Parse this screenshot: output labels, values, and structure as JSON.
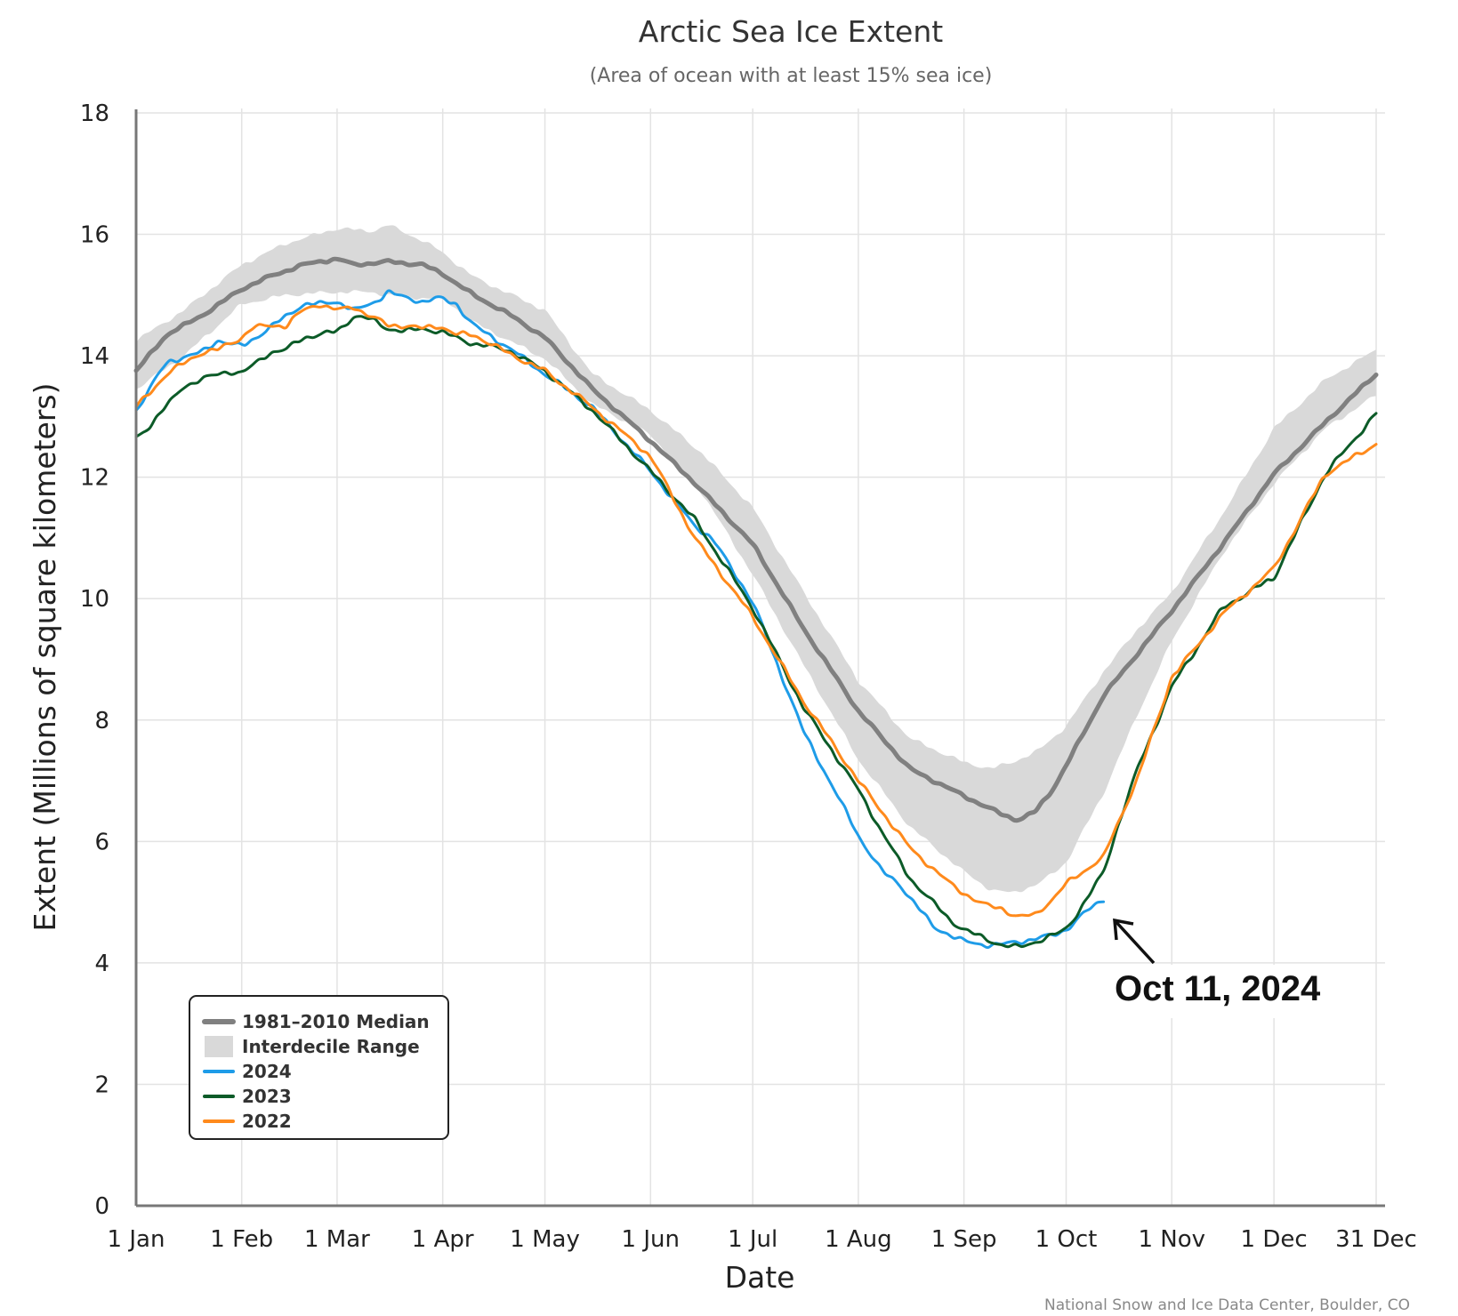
{
  "chart_data": {
    "type": "line",
    "title": "Arctic Sea Ice Extent",
    "subtitle": "(Area of ocean with at least 15% sea ice)",
    "xlabel": "Date",
    "ylabel": "Extent (Millions of square kilometers)",
    "xlim": [
      1,
      365
    ],
    "ylim": [
      0,
      18
    ],
    "y_ticks": [
      0,
      2,
      4,
      6,
      8,
      10,
      12,
      14,
      16,
      18
    ],
    "x_ticks": [
      {
        "day": 1,
        "label": "1 Jan"
      },
      {
        "day": 32,
        "label": "1 Feb"
      },
      {
        "day": 60,
        "label": "1 Mar"
      },
      {
        "day": 91,
        "label": "1 Apr"
      },
      {
        "day": 121,
        "label": "1 May"
      },
      {
        "day": 152,
        "label": "1 Jun"
      },
      {
        "day": 182,
        "label": "1 Jul"
      },
      {
        "day": 213,
        "label": "1 Aug"
      },
      {
        "day": 244,
        "label": "1 Sep"
      },
      {
        "day": 274,
        "label": "1 Oct"
      },
      {
        "day": 305,
        "label": "1 Nov"
      },
      {
        "day": 335,
        "label": "1 Dec"
      },
      {
        "day": 365,
        "label": "31 Dec"
      }
    ],
    "grid": true,
    "legend_position": "bottom-left",
    "range": {
      "name": "Interdecile Range",
      "color": "#d9d9d9",
      "x": [
        1,
        15,
        32,
        45,
        60,
        70,
        75,
        85,
        91,
        100,
        121,
        135,
        152,
        167,
        182,
        197,
        213,
        228,
        244,
        252,
        258,
        266,
        274,
        285,
        295,
        305,
        320,
        335,
        350,
        365
      ],
      "upper": [
        14.25,
        14.75,
        15.5,
        15.85,
        16.1,
        16.05,
        16.15,
        15.9,
        15.7,
        15.3,
        14.75,
        13.7,
        13.1,
        12.4,
        11.5,
        10.1,
        8.65,
        7.7,
        7.3,
        7.2,
        7.3,
        7.5,
        7.9,
        8.8,
        9.5,
        10.1,
        11.4,
        12.8,
        13.6,
        14.1
      ],
      "lower": [
        13.45,
        14.0,
        14.85,
        15.0,
        15.05,
        15.05,
        15.0,
        14.95,
        14.95,
        14.55,
        13.95,
        13.2,
        12.7,
        11.75,
        10.4,
        8.9,
        7.35,
        6.25,
        5.5,
        5.2,
        5.15,
        5.3,
        5.65,
        6.8,
        8.1,
        9.3,
        10.75,
        11.9,
        12.8,
        13.35
      ]
    },
    "series": [
      {
        "name": "1981–2010 Median",
        "color": "#808080",
        "width": 5,
        "x": [
          1,
          10,
          20,
          32,
          40,
          50,
          60,
          65,
          75,
          85,
          91,
          100,
          110,
          121,
          135,
          152,
          165,
          182,
          197,
          213,
          228,
          244,
          255,
          260,
          265,
          270,
          274,
          285,
          295,
          305,
          320,
          335,
          350,
          365
        ],
        "y": [
          13.75,
          14.35,
          14.65,
          15.1,
          15.3,
          15.5,
          15.6,
          15.5,
          15.55,
          15.5,
          15.35,
          15.0,
          14.7,
          14.3,
          13.45,
          12.6,
          11.9,
          10.9,
          9.5,
          8.15,
          7.2,
          6.75,
          6.45,
          6.35,
          6.5,
          6.85,
          7.25,
          8.4,
          9.1,
          9.8,
          10.9,
          12.05,
          12.9,
          13.7
        ]
      },
      {
        "name": "2024",
        "color": "#1e9ce8",
        "width": 3,
        "x": [
          1,
          10,
          20,
          25,
          32,
          40,
          45,
          50,
          55,
          60,
          65,
          70,
          75,
          80,
          85,
          90,
          95,
          100,
          110,
          121,
          135,
          152,
          165,
          170,
          182,
          197,
          213,
          220,
          225,
          235,
          244,
          250,
          255,
          260,
          265,
          270,
          274,
          280,
          285
        ],
        "y": [
          13.1,
          13.9,
          14.05,
          14.25,
          14.15,
          14.45,
          14.65,
          14.85,
          14.85,
          14.9,
          14.75,
          14.85,
          15.05,
          14.95,
          14.9,
          14.95,
          14.85,
          14.5,
          14.15,
          13.7,
          13.15,
          12.1,
          11.2,
          11.0,
          9.95,
          7.8,
          6.1,
          5.5,
          5.3,
          4.6,
          4.35,
          4.3,
          4.3,
          4.35,
          4.4,
          4.45,
          4.55,
          4.85,
          5.05
        ]
      },
      {
        "name": "2023",
        "color": "#0c5b28",
        "width": 3,
        "x": [
          1,
          5,
          15,
          25,
          28,
          32,
          40,
          45,
          50,
          55,
          60,
          65,
          70,
          75,
          80,
          85,
          90,
          95,
          100,
          110,
          121,
          135,
          152,
          165,
          182,
          197,
          213,
          220,
          228,
          240,
          244,
          250,
          255,
          260,
          265,
          270,
          274,
          280,
          285,
          290,
          295,
          305,
          320,
          335,
          350,
          365
        ],
        "y": [
          12.65,
          12.85,
          13.5,
          13.7,
          13.75,
          13.7,
          14.05,
          14.1,
          14.3,
          14.35,
          14.4,
          14.65,
          14.6,
          14.45,
          14.4,
          14.45,
          14.4,
          14.3,
          14.2,
          14.1,
          13.75,
          13.1,
          12.1,
          11.3,
          9.85,
          8.2,
          6.85,
          6.15,
          5.4,
          4.7,
          4.55,
          4.4,
          4.3,
          4.25,
          4.35,
          4.45,
          4.55,
          5.05,
          5.5,
          6.4,
          7.2,
          8.55,
          9.85,
          10.35,
          12.05,
          13.05
        ]
      },
      {
        "name": "2022",
        "color": "#ff8a1c",
        "width": 3,
        "x": [
          1,
          10,
          20,
          25,
          32,
          35,
          40,
          45,
          50,
          55,
          60,
          65,
          70,
          75,
          80,
          85,
          90,
          95,
          100,
          110,
          121,
          135,
          152,
          165,
          182,
          197,
          213,
          228,
          240,
          244,
          250,
          255,
          260,
          265,
          270,
          274,
          285,
          295,
          305,
          320,
          335,
          350,
          365
        ],
        "y": [
          13.15,
          13.7,
          14.05,
          14.1,
          14.3,
          14.45,
          14.5,
          14.5,
          14.75,
          14.85,
          14.75,
          14.8,
          14.65,
          14.5,
          14.5,
          14.45,
          14.5,
          14.35,
          14.35,
          14.05,
          13.75,
          13.15,
          12.35,
          11.0,
          9.7,
          8.3,
          7.0,
          5.9,
          5.3,
          5.15,
          4.95,
          4.9,
          4.75,
          4.8,
          5.05,
          5.3,
          5.75,
          7.05,
          8.7,
          9.75,
          10.5,
          12.05,
          12.55
        ]
      }
    ],
    "legend": [
      {
        "label": "1981–2010 Median",
        "kind": "line",
        "color": "#808080"
      },
      {
        "label": "Interdecile Range",
        "kind": "box",
        "color": "#d9d9d9"
      },
      {
        "label": "2024",
        "kind": "line",
        "color": "#1e9ce8"
      },
      {
        "label": "2023",
        "kind": "line",
        "color": "#0c5b28"
      },
      {
        "label": "2022",
        "kind": "line",
        "color": "#ff8a1c"
      }
    ],
    "annotation": {
      "text": "Oct 11, 2024",
      "day": 285,
      "value": 5.05
    },
    "credit": "National Snow and Ice Data Center, Boulder, CO"
  }
}
